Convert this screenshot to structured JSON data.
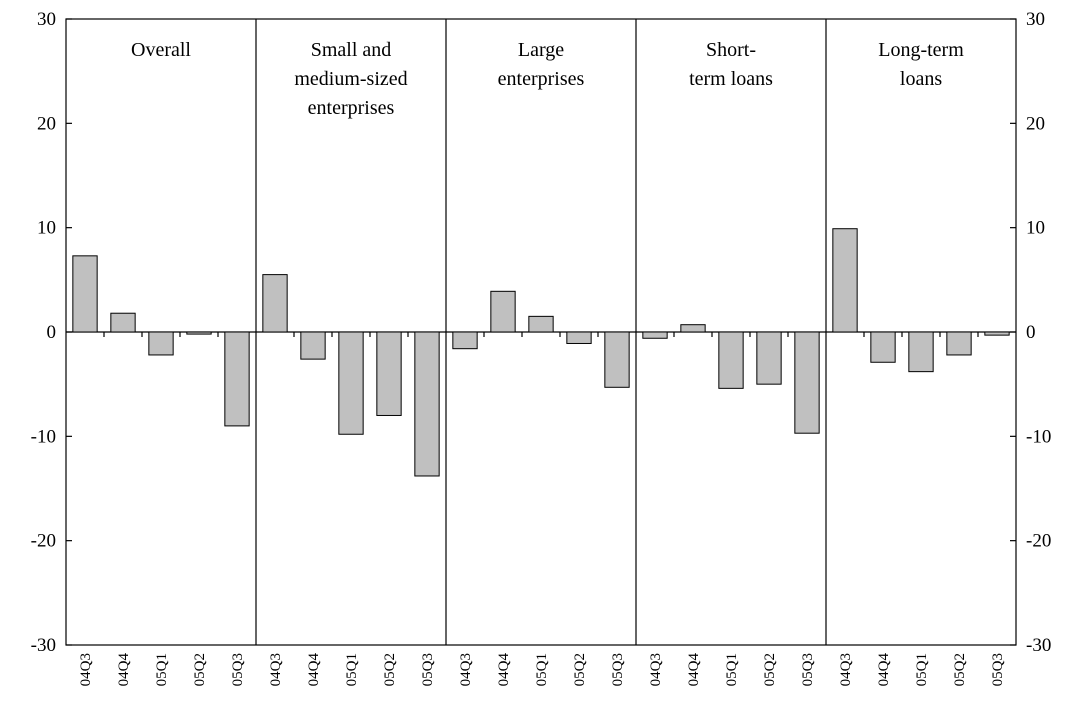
{
  "chart_data": {
    "type": "bar",
    "title": "",
    "xlabel": "",
    "ylabel": "",
    "ylim": [
      -30,
      30
    ],
    "yticks": [
      30,
      20,
      10,
      0,
      -10,
      -20,
      -30
    ],
    "y_axis_right": true,
    "grid": false,
    "legend": "none",
    "bar_color": "#c0c0c0",
    "categories": [
      "04Q3",
      "04Q4",
      "05Q1",
      "05Q2",
      "05Q3"
    ],
    "panels": [
      {
        "name": [
          "Overall"
        ],
        "values": [
          7.3,
          1.8,
          -2.2,
          -0.2,
          -9.0
        ]
      },
      {
        "name": [
          "Small and",
          "medium-sized",
          "enterprises"
        ],
        "values": [
          5.5,
          -2.6,
          -9.8,
          -8.0,
          -13.8
        ]
      },
      {
        "name": [
          "Large",
          "enterprises"
        ],
        "values": [
          -1.6,
          3.9,
          1.5,
          -1.1,
          -5.3
        ]
      },
      {
        "name": [
          "Short-",
          "term loans"
        ],
        "values": [
          -0.6,
          0.7,
          -5.4,
          -5.0,
          -9.7
        ]
      },
      {
        "name": [
          "Long-term",
          "loans"
        ],
        "values": [
          9.9,
          -2.9,
          -3.8,
          -2.2,
          -0.3
        ]
      }
    ]
  }
}
